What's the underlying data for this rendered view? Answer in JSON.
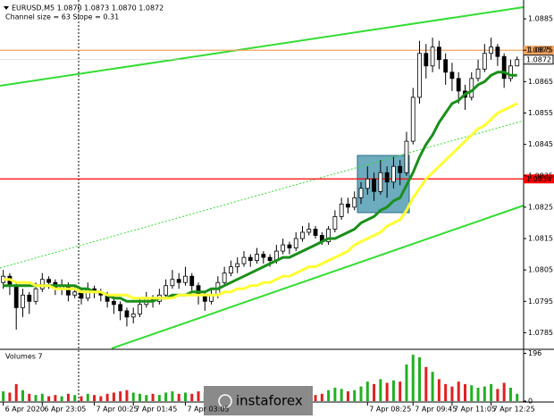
{
  "chart_data": {
    "type": "candlestick",
    "symbol_info": "EURUSD,M5  1.0870 1.0873 1.0870 1.0872",
    "channel_info": "Channel size = 63 Slope = 0.31",
    "ylim": [
      1.078,
      1.0891
    ],
    "yticks": [
      1.0785,
      1.0795,
      1.0805,
      1.0815,
      1.0825,
      1.0835,
      1.0845,
      1.0855,
      1.0865,
      1.0875,
      1.0885
    ],
    "xlim": [
      -0.5,
      80
    ],
    "xticks": [
      {
        "value": 0,
        "label": "6 Apr 2020"
      },
      {
        "value": 6,
        "label": "6 Apr 23:05"
      },
      {
        "value": 14,
        "label": "7 Apr 00:25"
      },
      {
        "value": 20,
        "label": "7 Apr 01:45"
      },
      {
        "value": 28,
        "label": "7 Apr 03:05"
      },
      {
        "value": 56,
        "label": "7 Apr 08:25"
      },
      {
        "value": 63,
        "label": "7 Apr 09:45"
      },
      {
        "value": 69,
        "label": "7 Apr 11:05"
      },
      {
        "value": 75,
        "label": "7 Apr 12:25"
      }
    ],
    "ohlc": [
      [
        1.0801,
        1.0805,
        1.0799,
        1.0803
      ],
      [
        1.0803,
        1.0804,
        1.0797,
        1.08
      ],
      [
        1.08,
        1.0801,
        1.0786,
        1.0793
      ],
      [
        1.0793,
        1.0799,
        1.079,
        1.0797
      ],
      [
        1.0797,
        1.0798,
        1.0791,
        1.0795
      ],
      [
        1.0795,
        1.0801,
        1.0794,
        1.0799
      ],
      [
        1.0799,
        1.0804,
        1.0798,
        1.0802
      ],
      [
        1.0802,
        1.0803,
        1.0799,
        1.0801
      ],
      [
        1.0801,
        1.0802,
        1.0797,
        1.0799
      ],
      [
        1.0799,
        1.0802,
        1.0797,
        1.08
      ],
      [
        1.08,
        1.0801,
        1.0795,
        1.0797
      ],
      [
        1.0797,
        1.08,
        1.0796,
        1.0798
      ],
      [
        1.0798,
        1.0799,
        1.0794,
        1.0796
      ],
      [
        1.0796,
        1.0801,
        1.0795,
        1.0799
      ],
      [
        1.0799,
        1.08,
        1.0796,
        1.0798
      ],
      [
        1.0798,
        1.0799,
        1.0795,
        1.0797
      ],
      [
        1.0797,
        1.0798,
        1.0793,
        1.0795
      ],
      [
        1.0795,
        1.0797,
        1.0791,
        1.0794
      ],
      [
        1.0794,
        1.0795,
        1.0789,
        1.0792
      ],
      [
        1.0792,
        1.0793,
        1.0787,
        1.079
      ],
      [
        1.079,
        1.0793,
        1.0788,
        1.0791
      ],
      [
        1.0791,
        1.0796,
        1.079,
        1.0794
      ],
      [
        1.0794,
        1.0798,
        1.0793,
        1.0796
      ],
      [
        1.0796,
        1.0797,
        1.0793,
        1.0795
      ],
      [
        1.0795,
        1.0799,
        1.0794,
        1.0797
      ],
      [
        1.0797,
        1.0802,
        1.0796,
        1.08
      ],
      [
        1.08,
        1.0805,
        1.0799,
        1.0802
      ],
      [
        1.0802,
        1.0804,
        1.0799,
        1.0801
      ],
      [
        1.0801,
        1.0806,
        1.08,
        1.0803
      ],
      [
        1.0803,
        1.0804,
        1.0798,
        1.08
      ],
      [
        1.08,
        1.0801,
        1.0794,
        1.0797
      ],
      [
        1.0797,
        1.0798,
        1.0792,
        1.0795
      ],
      [
        1.0795,
        1.0799,
        1.0794,
        1.0797
      ],
      [
        1.0797,
        1.0803,
        1.0796,
        1.0801
      ],
      [
        1.0801,
        1.0806,
        1.08,
        1.0804
      ],
      [
        1.0804,
        1.0808,
        1.0803,
        1.0806
      ],
      [
        1.0806,
        1.0809,
        1.0804,
        1.0807
      ],
      [
        1.0807,
        1.0811,
        1.0806,
        1.0809
      ],
      [
        1.0809,
        1.081,
        1.0806,
        1.0808
      ],
      [
        1.0808,
        1.0812,
        1.0807,
        1.081
      ],
      [
        1.081,
        1.0811,
        1.0807,
        1.0809
      ],
      [
        1.0809,
        1.081,
        1.0806,
        1.0808
      ],
      [
        1.0808,
        1.0813,
        1.0807,
        1.0811
      ],
      [
        1.0811,
        1.0815,
        1.081,
        1.0813
      ],
      [
        1.0813,
        1.0814,
        1.081,
        1.0812
      ],
      [
        1.0812,
        1.0817,
        1.0811,
        1.0815
      ],
      [
        1.0815,
        1.0819,
        1.0814,
        1.0817
      ],
      [
        1.0817,
        1.082,
        1.0816,
        1.0818
      ],
      [
        1.0818,
        1.0819,
        1.0815,
        1.0816
      ],
      [
        1.0816,
        1.0817,
        1.0813,
        1.0814
      ],
      [
        1.0814,
        1.0819,
        1.0813,
        1.0818
      ],
      [
        1.0818,
        1.0824,
        1.0817,
        1.0822
      ],
      [
        1.0822,
        1.0828,
        1.0821,
        1.0826
      ],
      [
        1.0826,
        1.0828,
        1.0823,
        1.0825
      ],
      [
        1.0825,
        1.083,
        1.0824,
        1.0828
      ],
      [
        1.0828,
        1.0833,
        1.0826,
        1.0831
      ],
      [
        1.0831,
        1.0838,
        1.0829,
        1.0834
      ],
      [
        1.0834,
        1.0836,
        1.0827,
        1.083
      ],
      [
        1.083,
        1.084,
        1.0829,
        1.0836
      ],
      [
        1.0836,
        1.0838,
        1.0828,
        1.0833
      ],
      [
        1.0833,
        1.0841,
        1.0831,
        1.0838
      ],
      [
        1.0838,
        1.084,
        1.0832,
        1.0836
      ],
      [
        1.0836,
        1.0849,
        1.0835,
        1.0846
      ],
      [
        1.0846,
        1.0863,
        1.0845,
        1.086
      ],
      [
        1.086,
        1.0878,
        1.0858,
        1.0874
      ],
      [
        1.0874,
        1.0877,
        1.0866,
        1.087
      ],
      [
        1.087,
        1.0879,
        1.0868,
        1.0876
      ],
      [
        1.0876,
        1.0878,
        1.0869,
        1.0872
      ],
      [
        1.0872,
        1.0874,
        1.0864,
        1.0868
      ],
      [
        1.0868,
        1.0871,
        1.0862,
        1.0866
      ],
      [
        1.0866,
        1.0868,
        1.0858,
        1.0862
      ],
      [
        1.0862,
        1.0864,
        1.0856,
        1.086
      ],
      [
        1.086,
        1.0868,
        1.0859,
        1.0866
      ],
      [
        1.0866,
        1.0872,
        1.0865,
        1.0869
      ],
      [
        1.0869,
        1.0877,
        1.0868,
        1.0874
      ],
      [
        1.0874,
        1.0879,
        1.0872,
        1.0876
      ],
      [
        1.0876,
        1.0877,
        1.087,
        1.0873
      ],
      [
        1.0873,
        1.0874,
        1.0863,
        1.0866
      ],
      [
        1.0866,
        1.0872,
        1.0865,
        1.087
      ],
      [
        1.087,
        1.0873,
        1.087,
        1.0872
      ]
    ],
    "moving_averages": [
      {
        "color": "#1a8f1a",
        "values": [
          1.08,
          1.08,
          1.08,
          1.08,
          1.08,
          1.08,
          1.08,
          1.08,
          1.08,
          1.08,
          1.08,
          1.08,
          1.0799,
          1.0799,
          1.0798,
          1.0798,
          1.0797,
          1.0796,
          1.0796,
          1.0795,
          1.0795,
          1.0795,
          1.0795,
          1.0795,
          1.0796,
          1.0796,
          1.0797,
          1.0797,
          1.0797,
          1.0798,
          1.0798,
          1.0798,
          1.0799,
          1.0799,
          1.08,
          1.0801,
          1.0802,
          1.0803,
          1.0804,
          1.0805,
          1.0806,
          1.0807,
          1.0808,
          1.0809,
          1.0809,
          1.081,
          1.0811,
          1.0812,
          1.0813,
          1.0814,
          1.0815,
          1.0815,
          1.0816,
          1.0817,
          1.0818,
          1.082,
          1.0821,
          1.0822,
          1.0824,
          1.0825,
          1.0827,
          1.0828,
          1.0832,
          1.0836,
          1.0841,
          1.0845,
          1.0848,
          1.0852,
          1.0855,
          1.0858,
          1.0859,
          1.0861,
          1.0862,
          1.0864,
          1.0865,
          1.0867,
          1.0868,
          1.0868,
          1.0867,
          1.0867
        ]
      },
      {
        "color": "#ffff33",
        "values": [
          1.0802,
          1.0802,
          1.0801,
          1.0801,
          1.0801,
          1.08,
          1.08,
          1.08,
          1.0799,
          1.0799,
          1.0799,
          1.0799,
          1.0798,
          1.0798,
          1.0798,
          1.0798,
          1.0797,
          1.0797,
          1.0797,
          1.0797,
          1.0796,
          1.0796,
          1.0796,
          1.0796,
          1.0796,
          1.0796,
          1.0796,
          1.0797,
          1.0797,
          1.0797,
          1.0797,
          1.0797,
          1.0797,
          1.0797,
          1.0798,
          1.0798,
          1.0799,
          1.0799,
          1.08,
          1.08,
          1.0801,
          1.0801,
          1.0802,
          1.0803,
          1.0803,
          1.0804,
          1.0805,
          1.0806,
          1.0806,
          1.0807,
          1.0808,
          1.0809,
          1.081,
          1.0811,
          1.0813,
          1.0814,
          1.0815,
          1.0816,
          1.0817,
          1.0819,
          1.082,
          1.0821,
          1.0824,
          1.0828,
          1.0831,
          1.0834,
          1.0836,
          1.0838,
          1.084,
          1.0842,
          1.0844,
          1.0846,
          1.0848,
          1.085,
          1.0851,
          1.0853,
          1.0855,
          1.0856,
          1.0857,
          1.0858
        ]
      }
    ],
    "levels": [
      {
        "value": 1.0875,
        "color": "#f4a460"
      },
      {
        "value": 1.0834,
        "color": "#ff0000"
      }
    ],
    "current_price": 1.0872,
    "volume": {
      "title": "Volumes 7",
      "ylim": [
        0,
        205
      ],
      "yticks": [
        0,
        196
      ],
      "up_color": "#22b022",
      "down_color": "#e02020",
      "values": [
        40,
        35,
        70,
        45,
        30,
        25,
        30,
        20,
        25,
        20,
        30,
        25,
        20,
        30,
        25,
        20,
        30,
        35,
        40,
        45,
        35,
        30,
        25,
        30,
        25,
        35,
        40,
        30,
        35,
        30,
        40,
        35,
        25,
        30,
        35,
        30,
        25,
        30,
        20,
        25,
        30,
        25,
        30,
        35,
        30,
        35,
        40,
        30,
        25,
        30,
        45,
        55,
        50,
        40,
        45,
        60,
        80,
        70,
        90,
        75,
        85,
        80,
        150,
        190,
        180,
        140,
        120,
        90,
        70,
        60,
        80,
        70,
        65,
        55,
        60,
        70,
        50,
        75,
        55,
        30
      ]
    },
    "watermark": "instaforex"
  }
}
